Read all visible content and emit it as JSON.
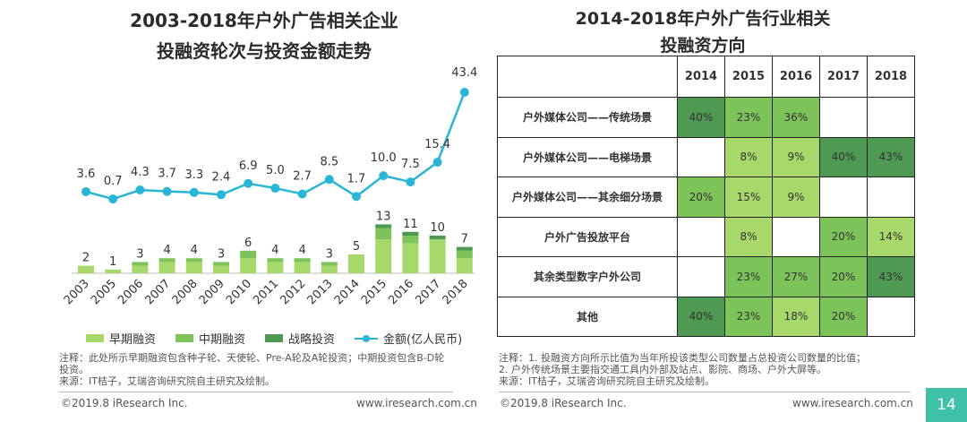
{
  "left_chart": {
    "title_line1": "2003-2018年户外广告相关企业",
    "title_line2": "投融资轮次与投资金额走势",
    "legend": [
      {
        "label": "早期融资",
        "color": "#a6d96a"
      },
      {
        "label": "中期融资",
        "color": "#7cc35a"
      },
      {
        "label": "战略投资",
        "color": "#4e9a52"
      },
      {
        "label": "金额(亿人民币)",
        "color": "#29b6d6"
      }
    ]
  },
  "chart_data": [
    {
      "type": "bar",
      "categories": [
        "2003",
        "2005",
        "2006",
        "2007",
        "2008",
        "2009",
        "2010",
        "2011",
        "2012",
        "2013",
        "2014",
        "2015",
        "2016",
        "2017",
        "2018"
      ],
      "series": [
        {
          "name": "早期融资",
          "values": [
            2,
            1,
            2,
            3,
            3,
            2,
            4,
            3,
            3,
            2,
            5,
            9,
            8,
            9,
            4
          ]
        },
        {
          "name": "中期融资",
          "values": [
            0,
            0,
            1,
            1,
            1,
            1,
            2,
            1,
            1,
            1,
            0,
            3,
            2,
            0,
            2
          ]
        },
        {
          "name": "战略投资",
          "values": [
            0,
            0,
            0,
            0,
            0,
            0,
            0,
            0,
            0,
            0,
            0,
            1,
            1,
            1,
            1
          ]
        },
        {
          "name": "金额(亿人民币)",
          "type": "line",
          "values": [
            3.6,
            0.7,
            4.3,
            3.7,
            3.3,
            2.4,
            6.9,
            5.0,
            2.7,
            8.5,
            1.7,
            10.0,
            7.5,
            15.4,
            43.4
          ]
        }
      ],
      "totals": [
        2,
        1,
        3,
        4,
        4,
        3,
        6,
        4,
        4,
        3,
        5,
        13,
        11,
        10,
        7
      ],
      "amount_labels": [
        "3.6",
        "0.7",
        "4.3",
        "3.7",
        "3.3",
        "2.4",
        "6.9",
        "5.0",
        "2.7",
        "8.5",
        "1.7",
        "10.0",
        "7.5",
        "15.4",
        "43.4"
      ]
    },
    {
      "type": "table",
      "title_line1": "2014-2018年户外广告行业相关",
      "title_line2": "投融资方向",
      "columns": [
        "2014",
        "2015",
        "2016",
        "2017",
        "2018"
      ],
      "rows": [
        {
          "label": "户外媒体公司——传统场景",
          "cells": [
            "40%",
            "23%",
            "36%",
            "",
            ""
          ]
        },
        {
          "label": "户外媒体公司——电梯场景",
          "cells": [
            "",
            "8%",
            "9%",
            "40%",
            "43%"
          ]
        },
        {
          "label": "户外媒体公司——其余细分场景",
          "cells": [
            "20%",
            "15%",
            "9%",
            "",
            ""
          ]
        },
        {
          "label": "户外广告投放平台",
          "cells": [
            "",
            "8%",
            "",
            "20%",
            "14%"
          ]
        },
        {
          "label": "其余类型数字户外公司",
          "cells": [
            "",
            "23%",
            "27%",
            "20%",
            "43%"
          ]
        },
        {
          "label": "其他",
          "cells": [
            "40%",
            "23%",
            "18%",
            "20%",
            ""
          ]
        }
      ]
    }
  ],
  "notes": {
    "left_line1": "注释：此处所示早期融资包含种子轮、天使轮、Pre-A轮及A轮投资；中期投资包含B-D轮",
    "left_line2": "投资。",
    "left_line3": "来源：IT桔子，艾瑞咨询研究院自主研究及绘制。",
    "right_line1": "注释：1. 投融资方向所示比值为当年所投该类型公司数量占总投资公司数量的比值；",
    "right_line2": "2. 户外传统场景主要指交通工具内外部及站点、影院、商场、户外大屏等。",
    "right_line3": "来源：IT桔子，艾瑞咨询研究院自主研究及绘制。"
  },
  "footer": {
    "left_copyright": "©2019.8 iResearch Inc.",
    "left_url": "www.iresearch.com.cn",
    "right_copyright": "©2019.8 iResearch Inc.",
    "right_url": "www.iresearch.com.cn",
    "page_number": "14"
  },
  "colors": {
    "early": "#a6d96a",
    "mid": "#7cc35a",
    "strategic": "#4e9a52",
    "line": "#29b6d6",
    "cell_dark": "#4e9a52",
    "cell_mid": "#7cc35a",
    "cell_light": "#a6d96a",
    "page_badge": "#3fc0a8"
  }
}
